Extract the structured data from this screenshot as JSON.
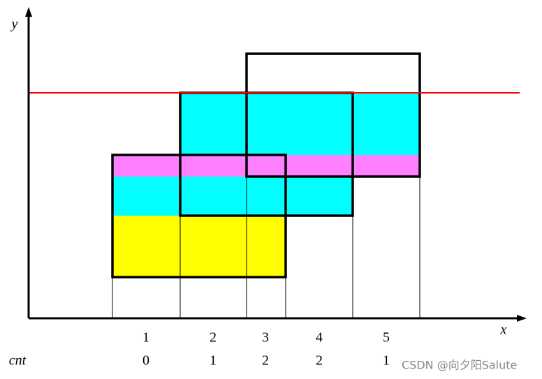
{
  "axes": {
    "y_label": "y",
    "x_label": "x"
  },
  "segments": [
    1,
    2,
    3,
    4,
    5
  ],
  "cnt_label": "cnt",
  "counts": [
    0,
    1,
    2,
    2,
    1
  ],
  "watermark": "CSDN @向夕阳Salute"
}
